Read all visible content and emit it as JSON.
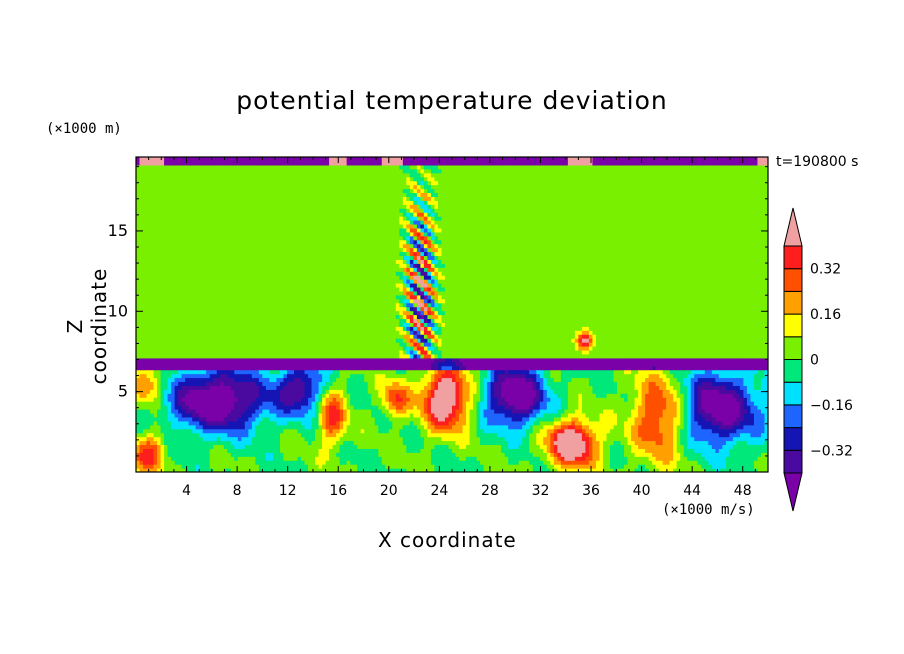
{
  "chart_data": {
    "type": "heatmap",
    "title": "potential temperature deviation",
    "xlabel": "X coordinate",
    "ylabel": "Z coordinate",
    "x_unit": "(×1000 m/s)",
    "y_unit": "(×1000 m)",
    "time_label": "t=190800 s",
    "xlim": [
      0,
      50
    ],
    "ylim": [
      0,
      19.6
    ],
    "x_ticks": [
      4,
      8,
      12,
      16,
      20,
      24,
      28,
      32,
      36,
      40,
      44,
      48
    ],
    "y_ticks": [
      5,
      10,
      15
    ],
    "colorbar": {
      "levels": [
        -0.4,
        -0.32,
        -0.24,
        -0.16,
        -0.08,
        0,
        0.08,
        0.16,
        0.24,
        0.32,
        0.4
      ],
      "labels": [
        "0.32",
        "0.16",
        "0",
        "−0.16",
        "−0.32"
      ],
      "label_values": [
        0.32,
        0.16,
        0,
        -0.16,
        -0.32
      ],
      "colors": [
        "#7a00a8",
        "#4a0aa0",
        "#1515b4",
        "#1e64ff",
        "#00e0ff",
        "#00e87a",
        "#78f000",
        "#ffff00",
        "#ffa000",
        "#ff5000",
        "#ff1e1e",
        "#f0a0a0"
      ],
      "extend": "both"
    }
  }
}
